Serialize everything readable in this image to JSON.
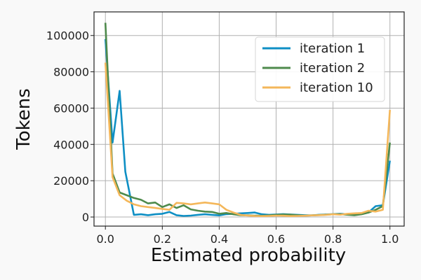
{
  "chart_data": {
    "type": "line",
    "xlabel": "Estimated probability",
    "ylabel": "Tokens",
    "xlim": [
      -0.04,
      1.05
    ],
    "ylim": [
      -5000,
      113000
    ],
    "xticks": [
      0.0,
      0.2,
      0.4,
      0.6,
      0.8,
      1.0
    ],
    "xtick_labels": [
      "0.0",
      "0.2",
      "0.4",
      "0.6",
      "0.8",
      "1.0"
    ],
    "yticks": [
      0,
      20000,
      40000,
      60000,
      80000,
      100000
    ],
    "ytick_labels": [
      "0",
      "20000",
      "40000",
      "60000",
      "80000",
      "100000"
    ],
    "grid": true,
    "legend_position": "top-right",
    "series": [
      {
        "name": "iteration 1",
        "color": "#0e8fc4",
        "x": [
          0.0,
          0.025,
          0.05,
          0.07,
          0.1,
          0.125,
          0.15,
          0.175,
          0.2,
          0.225,
          0.25,
          0.275,
          0.3,
          0.325,
          0.35,
          0.375,
          0.4,
          0.425,
          0.45,
          0.475,
          0.5,
          0.525,
          0.55,
          0.575,
          0.6,
          0.625,
          0.65,
          0.675,
          0.7,
          0.725,
          0.75,
          0.775,
          0.8,
          0.825,
          0.85,
          0.875,
          0.9,
          0.925,
          0.95,
          0.975,
          1.0
        ],
        "values": [
          98000,
          41000,
          69500,
          25000,
          1200,
          1500,
          1000,
          1500,
          1800,
          2800,
          1000,
          600,
          800,
          1200,
          1500,
          1200,
          900,
          1600,
          1800,
          2000,
          2200,
          2500,
          1500,
          1200,
          1400,
          1600,
          1400,
          1200,
          1000,
          900,
          1200,
          1400,
          1600,
          1800,
          1500,
          1400,
          2000,
          2600,
          6000,
          6500,
          31000
        ]
      },
      {
        "name": "iteration 2",
        "color": "#4e8a4c",
        "x": [
          0.0,
          0.025,
          0.05,
          0.075,
          0.1,
          0.125,
          0.15,
          0.175,
          0.2,
          0.225,
          0.25,
          0.275,
          0.3,
          0.325,
          0.35,
          0.375,
          0.4,
          0.425,
          0.45,
          0.475,
          0.5,
          0.525,
          0.55,
          0.575,
          0.6,
          0.625,
          0.65,
          0.675,
          0.7,
          0.725,
          0.75,
          0.775,
          0.8,
          0.825,
          0.85,
          0.875,
          0.9,
          0.925,
          0.95,
          0.975,
          1.0
        ],
        "values": [
          107000,
          24000,
          13500,
          12000,
          10500,
          9500,
          7500,
          8000,
          5500,
          7000,
          5000,
          6500,
          4200,
          3500,
          3000,
          2800,
          1800,
          2200,
          1500,
          1000,
          900,
          800,
          700,
          900,
          1200,
          1400,
          1300,
          1000,
          800,
          900,
          1100,
          1300,
          1500,
          1600,
          1300,
          1000,
          1500,
          2500,
          4000,
          6000,
          41000
        ]
      },
      {
        "name": "iteration 10",
        "color": "#f4b75a",
        "x": [
          0.0,
          0.025,
          0.05,
          0.075,
          0.1,
          0.125,
          0.15,
          0.175,
          0.2,
          0.225,
          0.25,
          0.275,
          0.3,
          0.325,
          0.35,
          0.375,
          0.4,
          0.425,
          0.45,
          0.475,
          0.5,
          0.525,
          0.55,
          0.575,
          0.6,
          0.625,
          0.65,
          0.675,
          0.7,
          0.725,
          0.75,
          0.775,
          0.8,
          0.825,
          0.85,
          0.875,
          0.9,
          0.925,
          0.95,
          0.975,
          1.0
        ],
        "values": [
          85000,
          22000,
          12000,
          9000,
          7000,
          6000,
          5500,
          5000,
          4500,
          4000,
          7800,
          7500,
          7000,
          7500,
          8000,
          7500,
          7000,
          4000,
          2500,
          1200,
          800,
          600,
          500,
          600,
          800,
          700,
          500,
          600,
          700,
          900,
          1000,
          1200,
          1500,
          1300,
          1800,
          2000,
          2200,
          3500,
          3000,
          4000,
          59000
        ]
      }
    ]
  }
}
